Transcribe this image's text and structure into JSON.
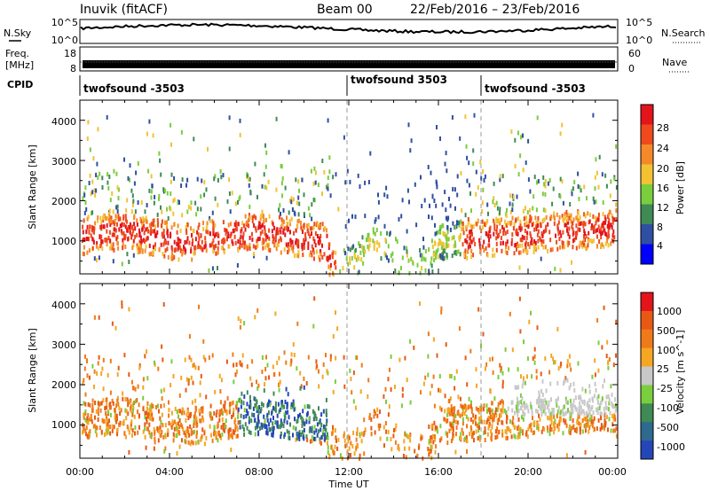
{
  "header": {
    "station": "Inuvik (fitACF)",
    "beam": "Beam 00",
    "date_range": "22/Feb/2016 – 23/Feb/2016"
  },
  "noise_panel": {
    "left_label": "N.Sky",
    "left_ticks": [
      "10^5",
      "10^0"
    ],
    "right_ticks": [
      "10^5",
      "10^0"
    ],
    "right_label": "N.Search"
  },
  "freq_panel": {
    "left_label_1": "Freq.",
    "left_label_2": "[MHz]",
    "left_ticks": [
      "18",
      "8"
    ],
    "right_ticks": [
      "60",
      "0"
    ],
    "right_label": "Nave"
  },
  "cpid": {
    "label": "CPID",
    "segments": [
      "twofsound -3503",
      "twofsound 3503",
      "twofsound -3503"
    ]
  },
  "colors": {
    "power_scale": [
      "#0000ff",
      "#2f4fa0",
      "#3f8a55",
      "#7acd3c",
      "#f2c233",
      "#f5892a",
      "#ee4a1e",
      "#e4141b"
    ],
    "velocity_scale": [
      "#2546b8",
      "#2e6a8e",
      "#3f8a55",
      "#7acd3c",
      "#c8c8c8",
      "#f5a623",
      "#f07a1a",
      "#e85a13",
      "#e4141b"
    ]
  },
  "chart_data": [
    {
      "type": "heatmap",
      "panel": "power",
      "ylabel": "Slant Range [km]",
      "yticks": [
        "4000",
        "3000",
        "2000",
        "1000"
      ],
      "ylim": [
        180,
        4500
      ],
      "xticks": [
        "00:00",
        "04:00",
        "08:00",
        "12:00",
        "16:00",
        "20:00",
        "00:00"
      ],
      "colorbar_label": "Power [dB]",
      "colorbar_ticks": [
        "28",
        "24",
        "20",
        "16",
        "12",
        "8",
        "4"
      ]
    },
    {
      "type": "heatmap",
      "panel": "velocity",
      "ylabel": "Slant Range [km]",
      "yticks": [
        "4000",
        "3000",
        "2000",
        "1000"
      ],
      "ylim": [
        180,
        4500
      ],
      "xticks": [
        "00:00",
        "04:00",
        "08:00",
        "12:00",
        "16:00",
        "20:00",
        "00:00"
      ],
      "xlabel": "Time UT",
      "colorbar_label": "Velocity [m s^-1]",
      "colorbar_ticks": [
        "1000",
        "500",
        "100",
        "25",
        "-25",
        "-100",
        "-500",
        "-1000"
      ]
    }
  ]
}
